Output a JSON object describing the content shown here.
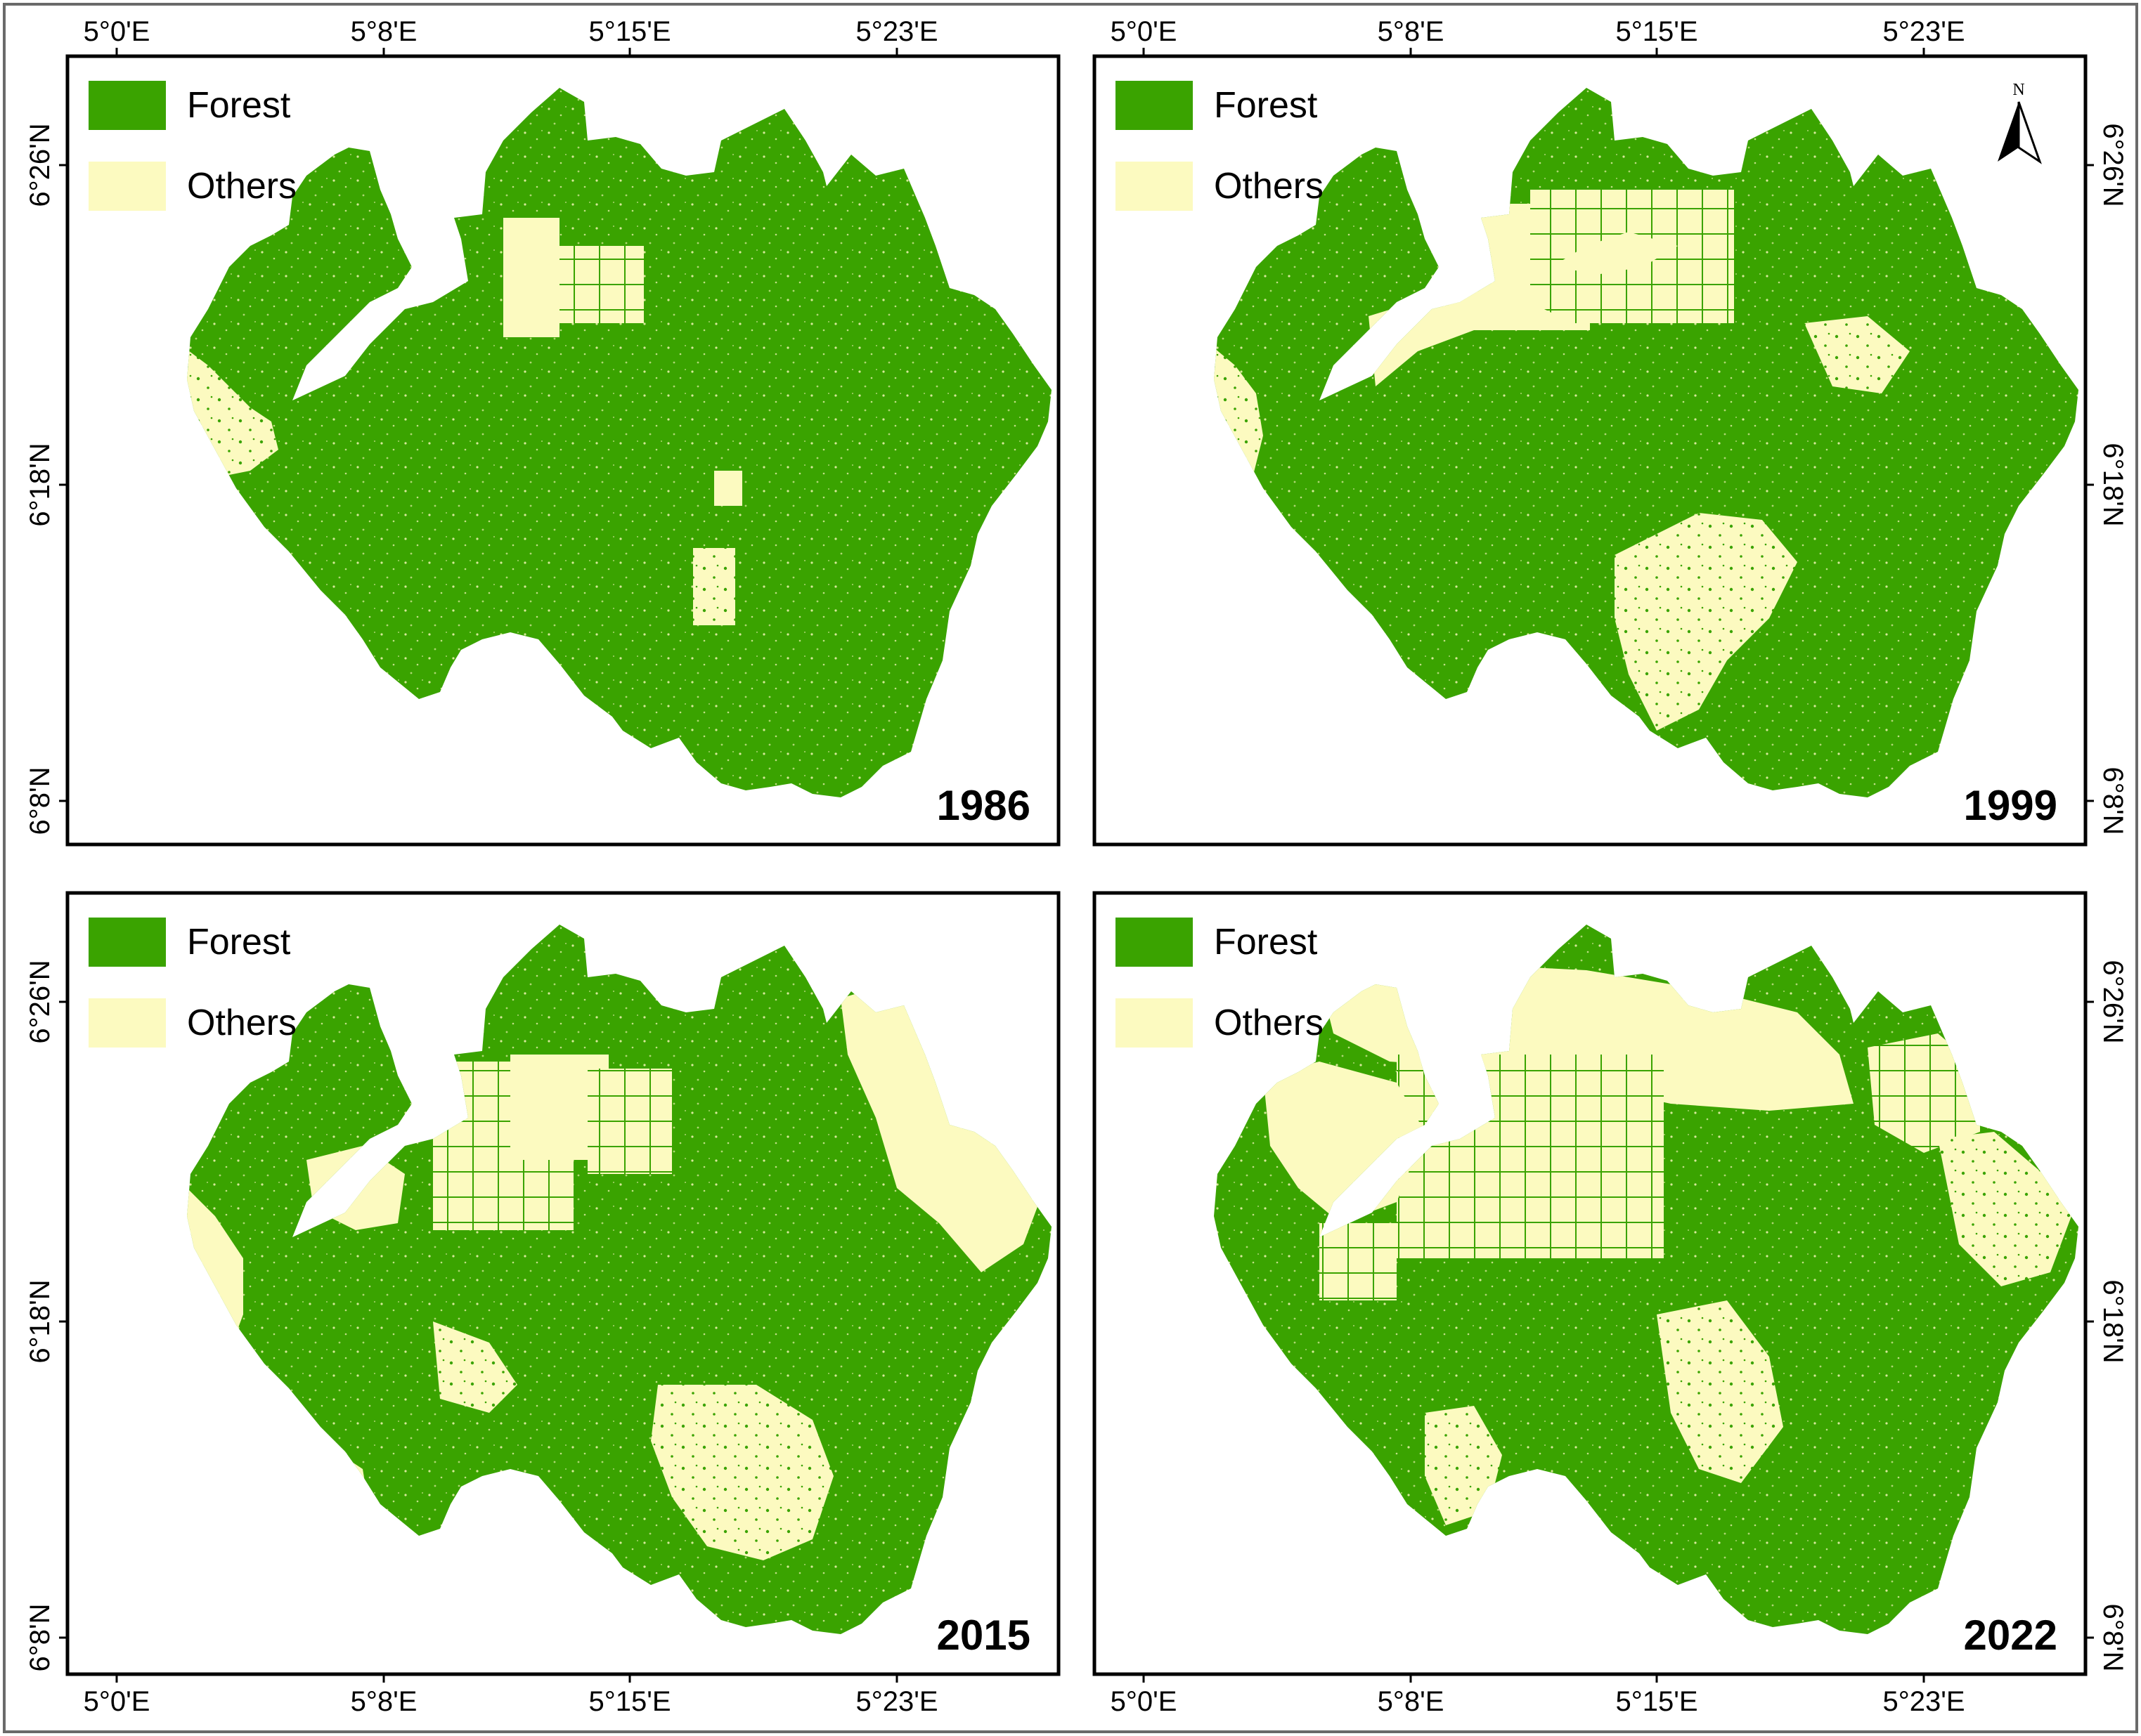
{
  "map": {
    "panels": [
      {
        "year": "1986"
      },
      {
        "year": "1999"
      },
      {
        "year": "2015"
      },
      {
        "year": "2022"
      }
    ],
    "legend": [
      {
        "label": "Forest",
        "color": "#3aa300"
      },
      {
        "label": "Others",
        "color": "#fcfac0"
      }
    ],
    "longitude_labels": [
      "5°0'E",
      "5°8'E",
      "5°15'E",
      "5°23'E"
    ],
    "latitude_labels": [
      "6°26'N",
      "6°18'N",
      "6°8'N"
    ],
    "north_arrow": {
      "letter": "N",
      "icon": "north-arrow-icon"
    },
    "forest_cover_pattern": {
      "1986": "mostly forest, others mainly on western and southwestern fringes plus a block in the north",
      "1999": "forest reduced; plantation grid in the north, network of others channels in the center-west",
      "2015": "large others areas on the east and southwest; plantation grids in the north-center",
      "2022": "extensive others in the north with plantation grids; forest concentrated in the center-east"
    }
  }
}
